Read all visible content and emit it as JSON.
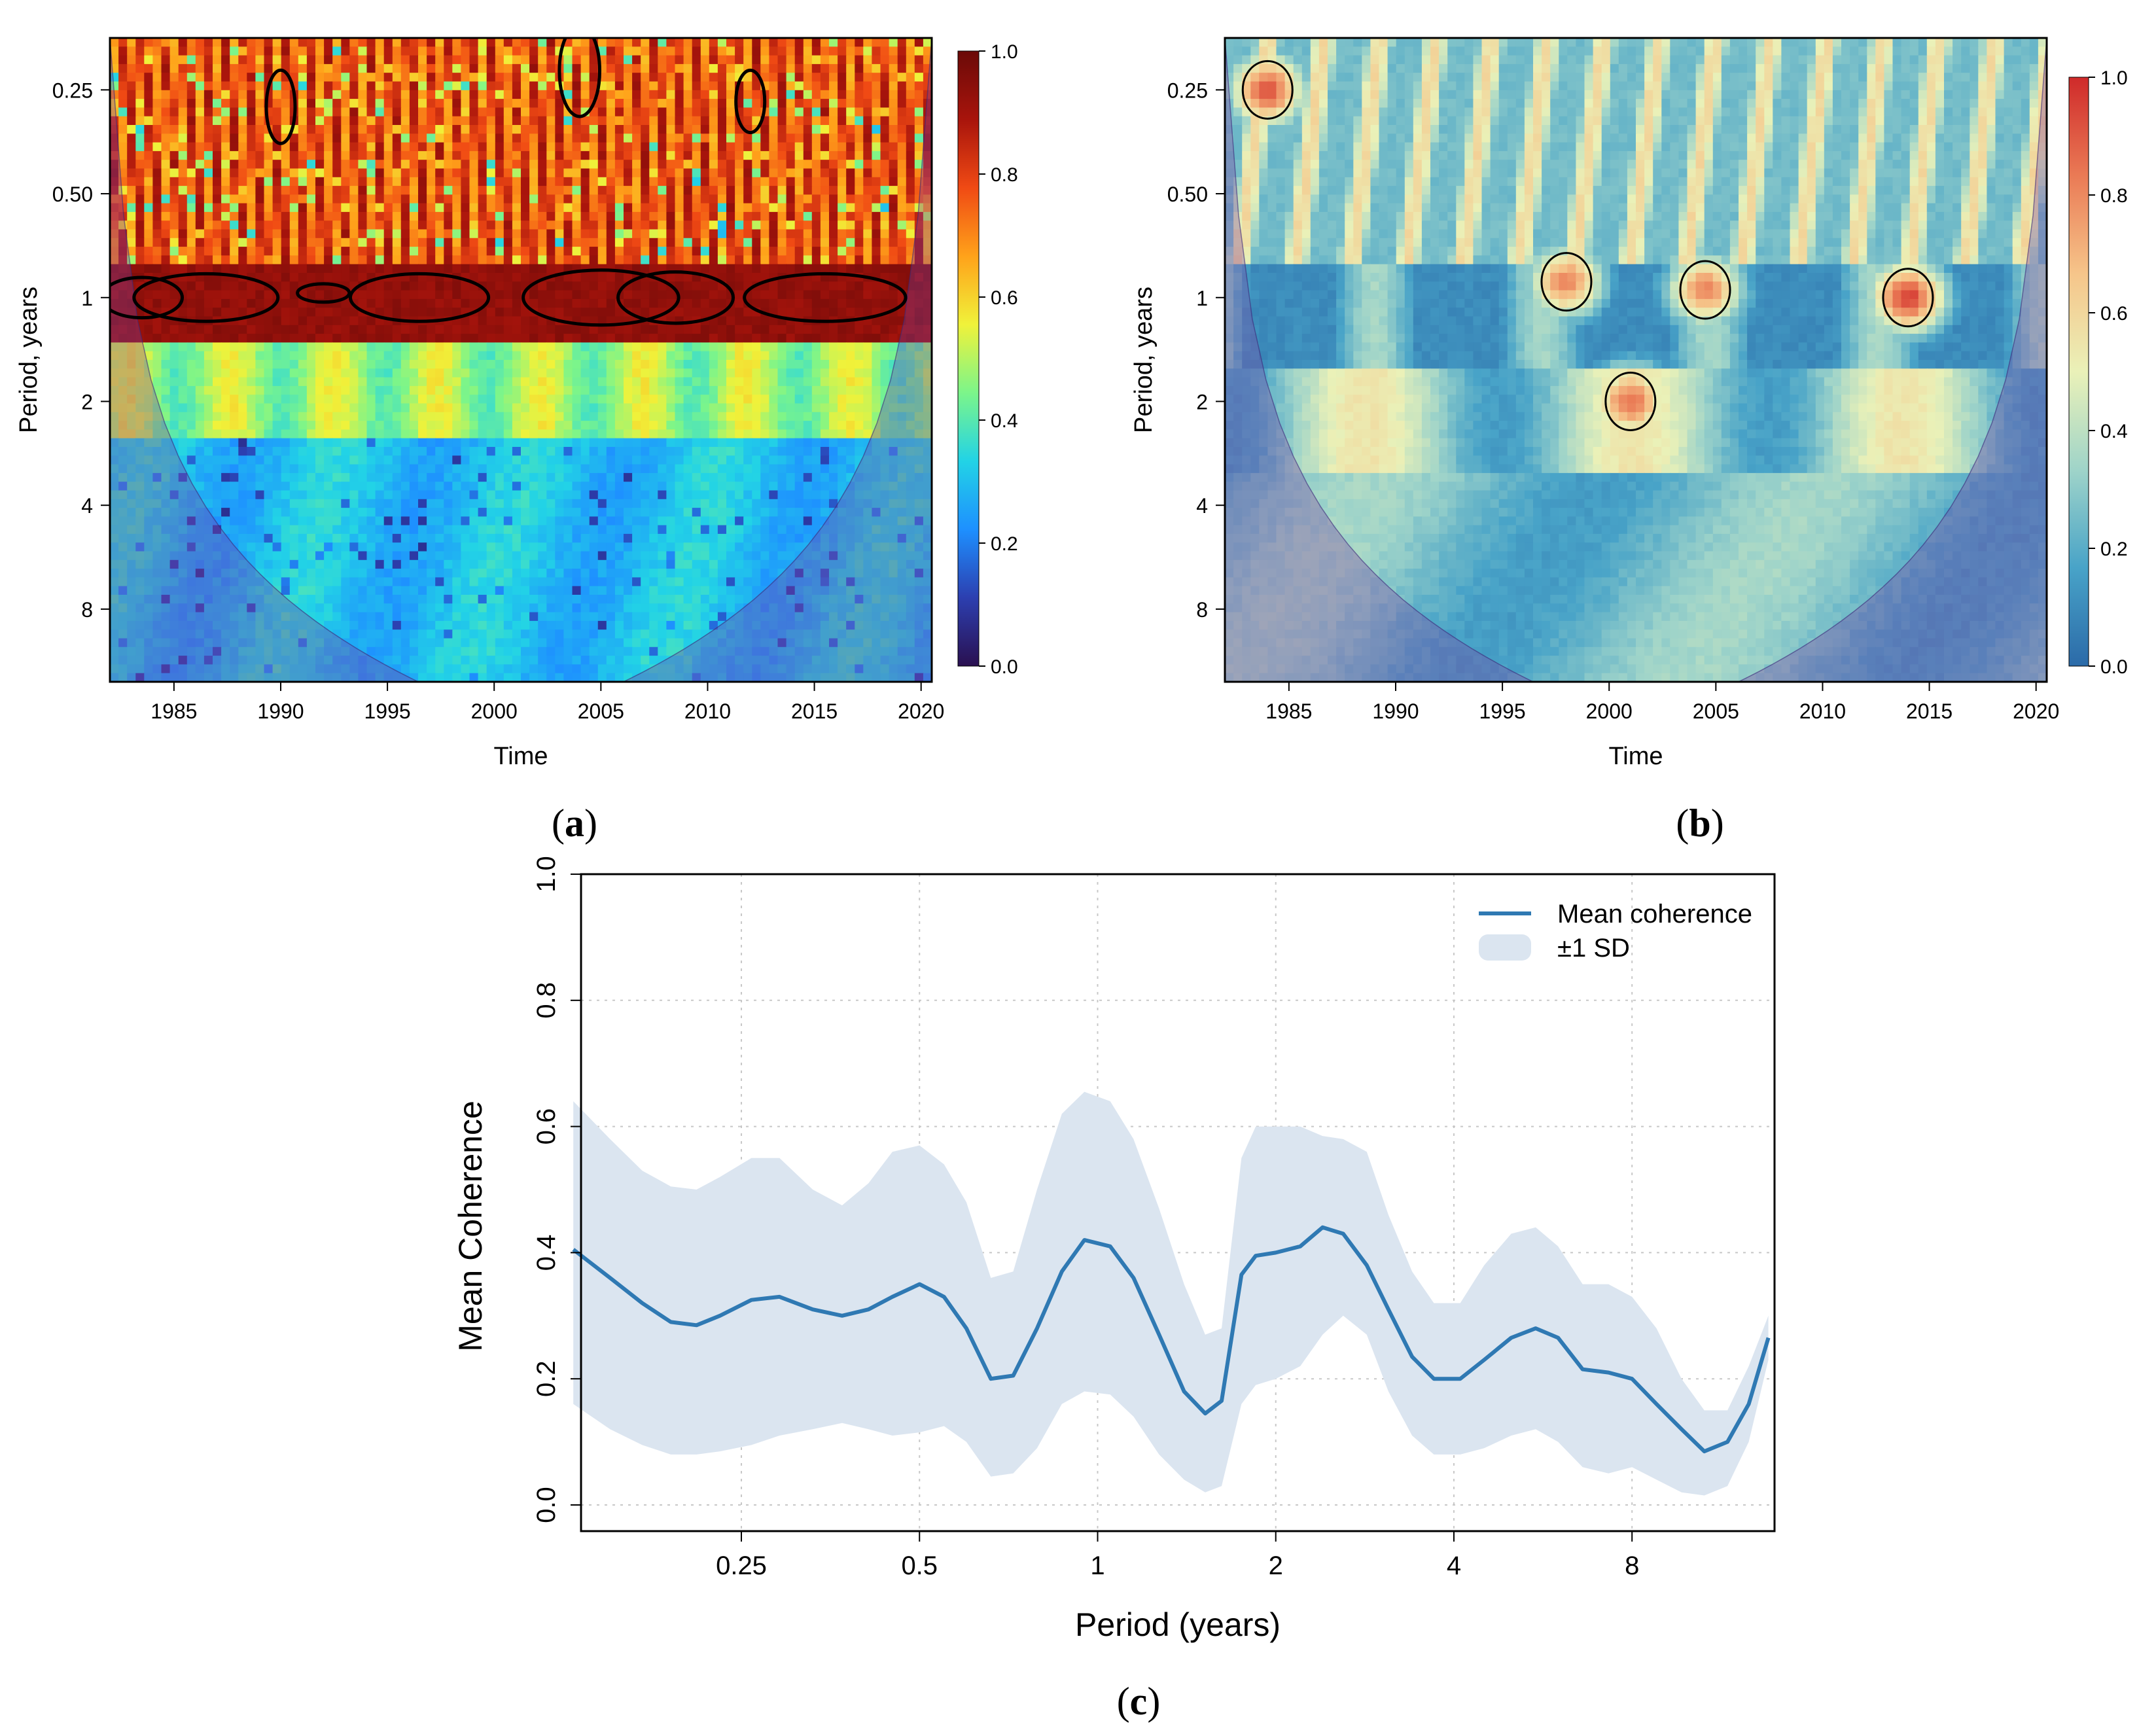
{
  "colors": {
    "heat_colorbar": [
      "#2a1050",
      "#2c3fb0",
      "#1e90ff",
      "#22d3e6",
      "#7cf58a",
      "#f0f23a",
      "#ffa21a",
      "#f04a14",
      "#a8140c",
      "#6b0a08"
    ],
    "coh_colorbar": [
      "#2b6aa8",
      "#48a3c8",
      "#9fd4c9",
      "#eaf1b8",
      "#f6c58a",
      "#ea7a55",
      "#cf2a2a"
    ],
    "mean_line": "#2f79b3",
    "sd_band": "#dbe5f0",
    "coi_shade": "#7a3fa0"
  },
  "panels": {
    "a": {
      "label": "a",
      "ylabel": "Period, years",
      "xlabel": "Time",
      "yticks": [
        "0.25",
        "0.50",
        "1",
        "2",
        "4",
        "8"
      ],
      "xticks": [
        "1985",
        "1990",
        "1995",
        "2000",
        "2005",
        "2010",
        "2015",
        "2020"
      ],
      "colorbar_ticks": [
        "1.0",
        "0.8",
        "0.6",
        "0.4",
        "0.2",
        "0.0"
      ]
    },
    "b": {
      "label": "b",
      "ylabel": "Period, years",
      "xlabel": "Time",
      "yticks": [
        "0.25",
        "0.50",
        "1",
        "2",
        "4",
        "8"
      ],
      "xticks": [
        "1985",
        "1990",
        "1995",
        "2000",
        "2005",
        "2010",
        "2015",
        "2020"
      ],
      "colorbar_ticks": [
        "1.0",
        "0.8",
        "0.6",
        "0.4",
        "0.2",
        "0.0"
      ]
    },
    "c": {
      "label": "c",
      "ylabel": "Mean Coherence",
      "xlabel": "Period (years)",
      "legend": {
        "line_label": "Mean coherence",
        "band_label": "±1 SD"
      }
    }
  },
  "chart_data": [
    {
      "type": "heatmap",
      "panel": "a",
      "title": "",
      "xlabel": "Time",
      "ylabel": "Period, years",
      "xlim": [
        1982,
        2020.5
      ],
      "ylim_log2_period": [
        -2.5,
        3.7
      ],
      "y_tick_values": [
        0.25,
        0.5,
        1,
        2,
        4,
        8
      ],
      "x_tick_values": [
        1985,
        1990,
        1995,
        2000,
        2005,
        2010,
        2015,
        2020
      ],
      "colorbar": {
        "min": 0,
        "max": 1,
        "ticks": [
          1.0,
          0.8,
          0.6,
          0.4,
          0.2,
          0.0
        ]
      },
      "description_bands": [
        {
          "period_range": [
            0.17,
            0.8
          ],
          "level": 0.8
        },
        {
          "period_range": [
            0.8,
            1.3
          ],
          "level": 0.92
        },
        {
          "period_range": [
            1.3,
            2.5
          ],
          "level": 0.5
        },
        {
          "period_range": [
            2.5,
            13
          ],
          "level": 0.3
        }
      ]
    },
    {
      "type": "heatmap",
      "panel": "b",
      "title": "",
      "xlabel": "Time",
      "ylabel": "Period, years",
      "xlim": [
        1982,
        2020.5
      ],
      "ylim_log2_period": [
        -2.5,
        3.7
      ],
      "y_tick_values": [
        0.25,
        0.5,
        1,
        2,
        4,
        8
      ],
      "x_tick_values": [
        1985,
        1990,
        1995,
        2000,
        2005,
        2010,
        2015,
        2020
      ],
      "colorbar": {
        "min": 0,
        "max": 1,
        "ticks": [
          1.0,
          0.8,
          0.6,
          0.4,
          0.2,
          0.0
        ]
      },
      "hotspots": [
        {
          "year": 2014,
          "period": 1.0,
          "level": 0.95
        },
        {
          "year": 2001,
          "period": 2.0,
          "level": 0.85
        },
        {
          "year": 1998,
          "period": 0.9,
          "level": 0.8
        },
        {
          "year": 2004.5,
          "period": 0.95,
          "level": 0.8
        },
        {
          "year": 1984,
          "period": 0.25,
          "level": 0.9
        }
      ]
    },
    {
      "type": "line",
      "panel": "c",
      "title": "",
      "xlabel": "Period (years)",
      "ylabel": "Mean Coherence",
      "x_scale": "log2",
      "x_tick_values": [
        0.25,
        0.5,
        1,
        2,
        4,
        8
      ],
      "x_tick_labels": [
        "0.25",
        "0.5",
        "1",
        "2",
        "4",
        "8"
      ],
      "y_tick_values": [
        0.0,
        0.2,
        0.4,
        0.6,
        0.8,
        1.0
      ],
      "y_tick_labels": [
        "0.0",
        "0.2",
        "0.4",
        "0.6",
        "0.8",
        "1.0"
      ],
      "ylim": [
        0,
        1.0
      ],
      "xlim_log2": [
        -2.9,
        3.8
      ],
      "grid": true,
      "legend_position": "top-right",
      "series": [
        {
          "name": "Mean coherence",
          "x": [
            0.13,
            0.15,
            0.17,
            0.19,
            0.21,
            0.23,
            0.26,
            0.29,
            0.33,
            0.37,
            0.41,
            0.45,
            0.5,
            0.55,
            0.6,
            0.66,
            0.72,
            0.79,
            0.87,
            0.95,
            1.05,
            1.15,
            1.27,
            1.4,
            1.52,
            1.62,
            1.75,
            1.85,
            2.0,
            2.2,
            2.4,
            2.6,
            2.85,
            3.1,
            3.4,
            3.7,
            4.1,
            4.5,
            5.0,
            5.5,
            6.0,
            6.6,
            7.3,
            8.0,
            8.8,
            9.7,
            10.6,
            11.6,
            12.6,
            13.6
          ],
          "y": [
            0.405,
            0.36,
            0.32,
            0.29,
            0.285,
            0.3,
            0.325,
            0.33,
            0.31,
            0.3,
            0.31,
            0.33,
            0.35,
            0.33,
            0.28,
            0.2,
            0.205,
            0.28,
            0.37,
            0.42,
            0.41,
            0.36,
            0.27,
            0.18,
            0.145,
            0.165,
            0.365,
            0.395,
            0.4,
            0.41,
            0.44,
            0.43,
            0.38,
            0.31,
            0.235,
            0.2,
            0.2,
            0.23,
            0.265,
            0.28,
            0.265,
            0.215,
            0.21,
            0.2,
            0.16,
            0.12,
            0.085,
            0.1,
            0.16,
            0.265
          ]
        },
        {
          "name": "±1 SD upper",
          "x": [
            0.13,
            0.15,
            0.17,
            0.19,
            0.21,
            0.23,
            0.26,
            0.29,
            0.33,
            0.37,
            0.41,
            0.45,
            0.5,
            0.55,
            0.6,
            0.66,
            0.72,
            0.79,
            0.87,
            0.95,
            1.05,
            1.15,
            1.27,
            1.4,
            1.52,
            1.62,
            1.75,
            1.85,
            2.0,
            2.2,
            2.4,
            2.6,
            2.85,
            3.1,
            3.4,
            3.7,
            4.1,
            4.5,
            5.0,
            5.5,
            6.0,
            6.6,
            7.3,
            8.0,
            8.8,
            9.7,
            10.6,
            11.6,
            12.6,
            13.6
          ],
          "y": [
            0.64,
            0.58,
            0.53,
            0.505,
            0.5,
            0.52,
            0.55,
            0.55,
            0.5,
            0.475,
            0.51,
            0.56,
            0.57,
            0.54,
            0.48,
            0.36,
            0.37,
            0.5,
            0.62,
            0.655,
            0.64,
            0.58,
            0.47,
            0.35,
            0.27,
            0.28,
            0.55,
            0.6,
            0.6,
            0.6,
            0.585,
            0.58,
            0.56,
            0.46,
            0.37,
            0.32,
            0.32,
            0.38,
            0.43,
            0.44,
            0.41,
            0.35,
            0.35,
            0.33,
            0.28,
            0.2,
            0.15,
            0.15,
            0.22,
            0.3
          ]
        },
        {
          "name": "±1 SD lower",
          "x": [
            0.13,
            0.15,
            0.17,
            0.19,
            0.21,
            0.23,
            0.26,
            0.29,
            0.33,
            0.37,
            0.41,
            0.45,
            0.5,
            0.55,
            0.6,
            0.66,
            0.72,
            0.79,
            0.87,
            0.95,
            1.05,
            1.15,
            1.27,
            1.4,
            1.52,
            1.62,
            1.75,
            1.85,
            2.0,
            2.2,
            2.4,
            2.6,
            2.85,
            3.1,
            3.4,
            3.7,
            4.1,
            4.5,
            5.0,
            5.5,
            6.0,
            6.6,
            7.3,
            8.0,
            8.8,
            9.7,
            10.6,
            11.6,
            12.6,
            13.6
          ],
          "y": [
            0.16,
            0.12,
            0.095,
            0.08,
            0.08,
            0.085,
            0.095,
            0.11,
            0.12,
            0.13,
            0.12,
            0.11,
            0.115,
            0.125,
            0.1,
            0.045,
            0.05,
            0.09,
            0.16,
            0.18,
            0.175,
            0.14,
            0.08,
            0.04,
            0.02,
            0.03,
            0.16,
            0.19,
            0.2,
            0.22,
            0.27,
            0.3,
            0.27,
            0.18,
            0.11,
            0.08,
            0.08,
            0.09,
            0.11,
            0.12,
            0.1,
            0.06,
            0.05,
            0.06,
            0.04,
            0.02,
            0.015,
            0.03,
            0.1,
            0.23
          ]
        }
      ]
    }
  ]
}
